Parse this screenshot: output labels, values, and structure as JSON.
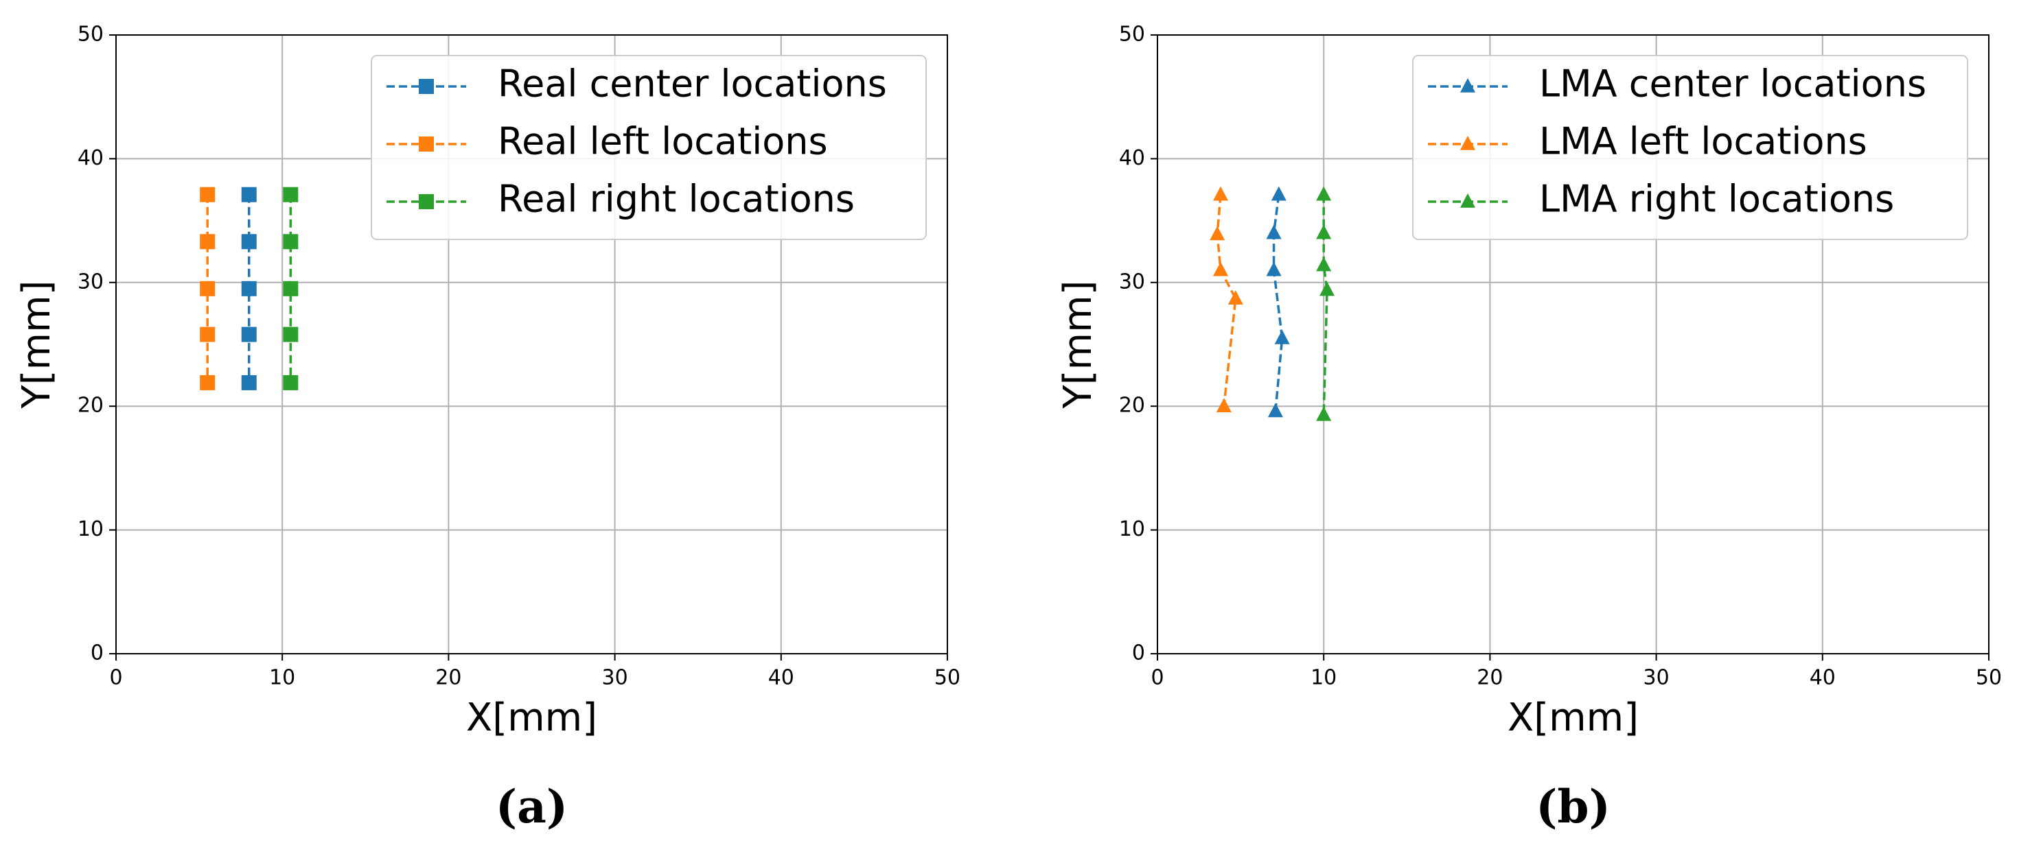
{
  "chart_data": [
    {
      "type": "line",
      "caption": "(a)",
      "xlabel": "X[mm]",
      "ylabel": "Y[mm]",
      "xlim": [
        0,
        50
      ],
      "ylim": [
        0,
        50
      ],
      "xticks": [
        0,
        10,
        20,
        30,
        40,
        50
      ],
      "yticks": [
        0,
        10,
        20,
        30,
        40,
        50
      ],
      "grid": true,
      "legend": "upper right",
      "marker": "square",
      "series": [
        {
          "name": "Real center locations",
          "color": "#1f77b4",
          "x": [
            8,
            8,
            8,
            8,
            8
          ],
          "values": [
            37.1,
            33.3,
            29.5,
            25.8,
            21.9
          ]
        },
        {
          "name": "Real left locations",
          "color": "#ff7f0e",
          "x": [
            5.5,
            5.5,
            5.5,
            5.5,
            5.5
          ],
          "values": [
            37.1,
            33.3,
            29.5,
            25.8,
            21.9
          ]
        },
        {
          "name": "Real right locations",
          "color": "#2ca02c",
          "x": [
            10.5,
            10.5,
            10.5,
            10.5,
            10.5
          ],
          "values": [
            37.1,
            33.3,
            29.5,
            25.8,
            21.9
          ]
        }
      ]
    },
    {
      "type": "line",
      "caption": "(b)",
      "xlabel": "X[mm]",
      "ylabel": "Y[mm]",
      "xlim": [
        0,
        50
      ],
      "ylim": [
        0,
        50
      ],
      "xticks": [
        0,
        10,
        20,
        30,
        40,
        50
      ],
      "yticks": [
        0,
        10,
        20,
        30,
        40,
        50
      ],
      "grid": true,
      "legend": "upper right",
      "marker": "triangle",
      "series": [
        {
          "name": "LMA center locations",
          "color": "#1f77b4",
          "x": [
            7.3,
            7.0,
            7.0,
            7.5,
            7.1
          ],
          "values": [
            37.1,
            34.0,
            31.0,
            25.5,
            19.6
          ]
        },
        {
          "name": "LMA left locations",
          "color": "#ff7f0e",
          "x": [
            3.8,
            3.6,
            3.8,
            4.7,
            4.0
          ],
          "values": [
            37.1,
            33.9,
            31.0,
            28.7,
            20.0
          ]
        },
        {
          "name": "LMA right locations",
          "color": "#2ca02c",
          "x": [
            10.0,
            10.0,
            10.0,
            10.2,
            10.0
          ],
          "values": [
            37.1,
            34.0,
            31.4,
            29.4,
            19.3
          ]
        }
      ]
    }
  ]
}
